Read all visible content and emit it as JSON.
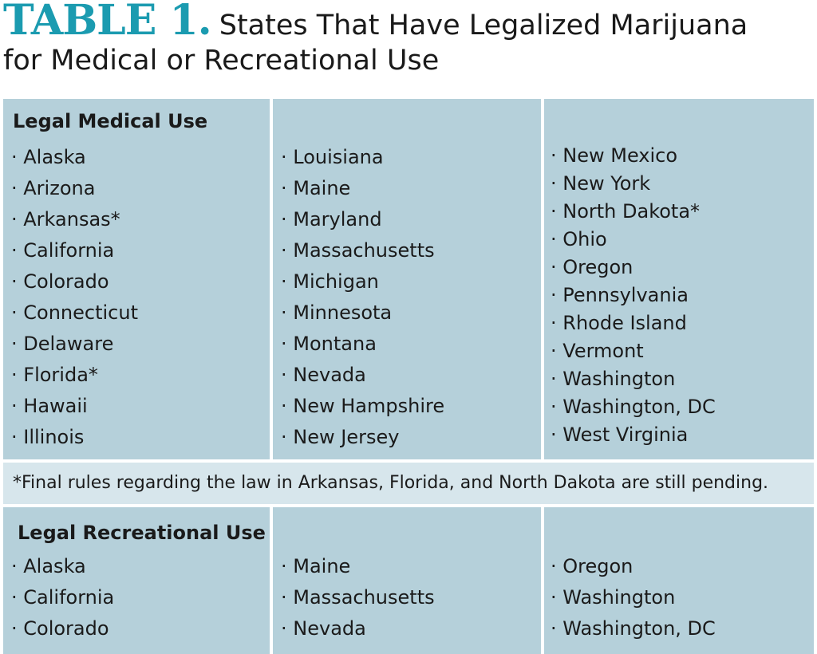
{
  "title": {
    "label": "TABLE 1.",
    "line1": "States That Have Legalized Marijuana",
    "line2": "for Medical or Recreational Use"
  },
  "medical": {
    "heading": "Legal Medical Use",
    "col1": [
      "Alaska",
      "Arizona",
      "Arkansas*",
      "California",
      "Colorado",
      "Connecticut",
      "Delaware",
      "Florida*",
      "Hawaii",
      "Illinois"
    ],
    "col2": [
      "Louisiana",
      "Maine",
      "Maryland",
      "Massachusetts",
      "Michigan",
      "Minnesota",
      "Montana",
      "Nevada",
      "New Hampshire",
      "New Jersey"
    ],
    "col3": [
      "New Mexico",
      "New York",
      "North Dakota*",
      "Ohio",
      "Oregon",
      "Pennsylvania",
      "Rhode Island",
      "Vermont",
      "Washington",
      "Washington, DC",
      "West Virginia"
    ]
  },
  "footnote": "*Final rules regarding the law in Arkansas, Florida, and North Dakota are still pending.",
  "recreational": {
    "heading": "Legal Recreational Use",
    "col1": [
      "Alaska",
      "California",
      "Colorado"
    ],
    "col2": [
      "Maine",
      "Massachusetts",
      "Nevada"
    ],
    "col3": [
      "Oregon",
      "Washington",
      "Washington, DC"
    ]
  },
  "colors": {
    "accent": "#1b9bb0",
    "panel": "#b5d0da",
    "footnote_bg": "#d7e6ec"
  }
}
